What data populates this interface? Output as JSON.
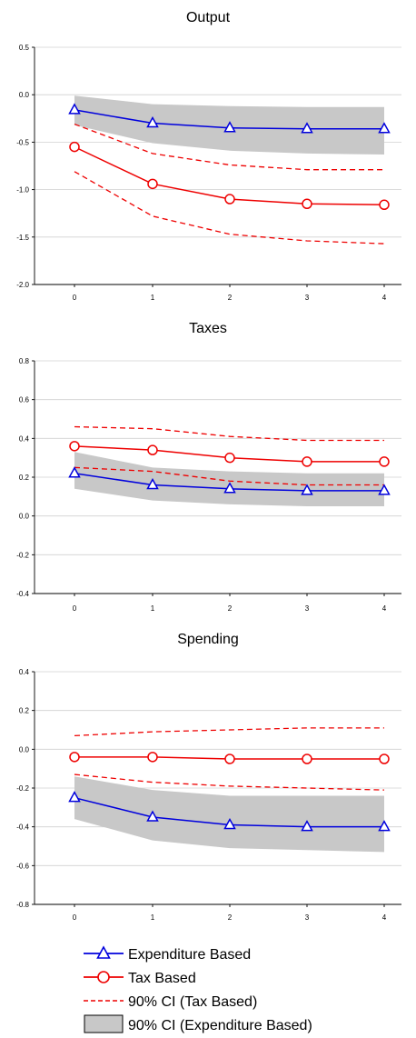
{
  "chart_data": [
    {
      "type": "line",
      "title": "Output",
      "x": [
        0,
        1,
        2,
        3,
        4
      ],
      "ylim": [
        -2.0,
        0.5
      ],
      "yticks": [
        "0.5",
        "0.0",
        "-0.5",
        "-1.0",
        "-1.5",
        "-2.0"
      ],
      "ytick_values": [
        0.5,
        0.0,
        -0.5,
        -1.0,
        -1.5,
        -2.0
      ],
      "xticks": [
        "0",
        "1",
        "2",
        "3",
        "4"
      ],
      "grid": true,
      "series": [
        {
          "name": "Expenditure Based",
          "values": [
            -0.16,
            -0.3,
            -0.35,
            -0.36,
            -0.36
          ]
        },
        {
          "name": "Tax Based",
          "values": [
            -0.55,
            -0.94,
            -1.1,
            -1.15,
            -1.16
          ]
        },
        {
          "name": "90% CI (Tax Based)",
          "lower": [
            -0.81,
            -1.28,
            -1.47,
            -1.54,
            -1.57
          ],
          "upper": [
            -0.31,
            -0.62,
            -0.74,
            -0.79,
            -0.79
          ]
        },
        {
          "name": "90% CI (Expenditure Based)",
          "lower": [
            -0.32,
            -0.51,
            -0.59,
            -0.62,
            -0.63
          ],
          "upper": [
            -0.01,
            -0.1,
            -0.12,
            -0.13,
            -0.13
          ]
        }
      ]
    },
    {
      "type": "line",
      "title": "Taxes",
      "x": [
        0,
        1,
        2,
        3,
        4
      ],
      "ylim": [
        -0.4,
        0.8
      ],
      "yticks": [
        "0.8",
        "0.6",
        "0.4",
        "0.2",
        "0.0",
        "-0.2",
        "-0.4"
      ],
      "ytick_values": [
        0.8,
        0.6,
        0.4,
        0.2,
        0.0,
        -0.2,
        -0.4
      ],
      "xticks": [
        "0",
        "1",
        "2",
        "3",
        "4"
      ],
      "grid": true,
      "series": [
        {
          "name": "Expenditure Based",
          "values": [
            0.22,
            0.16,
            0.14,
            0.13,
            0.13
          ]
        },
        {
          "name": "Tax Based",
          "values": [
            0.36,
            0.34,
            0.3,
            0.28,
            0.28
          ]
        },
        {
          "name": "90% CI (Tax Based)",
          "lower": [
            0.25,
            0.23,
            0.18,
            0.16,
            0.16
          ],
          "upper": [
            0.46,
            0.45,
            0.41,
            0.39,
            0.39
          ]
        },
        {
          "name": "90% CI (Expenditure Based)",
          "lower": [
            0.14,
            0.08,
            0.06,
            0.05,
            0.05
          ],
          "upper": [
            0.33,
            0.25,
            0.23,
            0.22,
            0.22
          ]
        }
      ]
    },
    {
      "type": "line",
      "title": "Spending",
      "x": [
        0,
        1,
        2,
        3,
        4
      ],
      "ylim": [
        -0.8,
        0.4
      ],
      "yticks": [
        "0.4",
        "0.2",
        "0.0",
        "-0.2",
        "-0.4",
        "-0.6",
        "-0.8"
      ],
      "ytick_values": [
        0.4,
        0.2,
        0.0,
        -0.2,
        -0.4,
        -0.6,
        -0.8
      ],
      "xticks": [
        "0",
        "1",
        "2",
        "3",
        "4"
      ],
      "grid": true,
      "series": [
        {
          "name": "Expenditure Based",
          "values": [
            -0.25,
            -0.35,
            -0.39,
            -0.4,
            -0.4
          ]
        },
        {
          "name": "Tax Based",
          "values": [
            -0.04,
            -0.04,
            -0.05,
            -0.05,
            -0.05
          ]
        },
        {
          "name": "90% CI (Tax Based)",
          "lower": [
            -0.13,
            -0.17,
            -0.19,
            -0.2,
            -0.21
          ],
          "upper": [
            0.07,
            0.09,
            0.1,
            0.11,
            0.11
          ]
        },
        {
          "name": "90% CI (Expenditure Based)",
          "lower": [
            -0.36,
            -0.47,
            -0.51,
            -0.52,
            -0.53
          ],
          "upper": [
            -0.14,
            -0.21,
            -0.24,
            -0.24,
            -0.24
          ]
        }
      ]
    }
  ],
  "legend": {
    "placement": "bottom",
    "items": [
      {
        "label": "Expenditure Based",
        "kind": "line-triangle",
        "color": "#0000dd"
      },
      {
        "label": "Tax Based",
        "kind": "line-circle",
        "color": "#ee0000"
      },
      {
        "label": "90% CI (Tax Based)",
        "kind": "dashed",
        "color": "#ee0000"
      },
      {
        "label": "90% CI (Expenditure Based)",
        "kind": "band",
        "color": "#c8c8c8"
      }
    ]
  },
  "colors": {
    "expenditure": "#0000dd",
    "tax": "#ee0000",
    "band": "#c8c8c8",
    "grid": "#d0d0d0"
  }
}
